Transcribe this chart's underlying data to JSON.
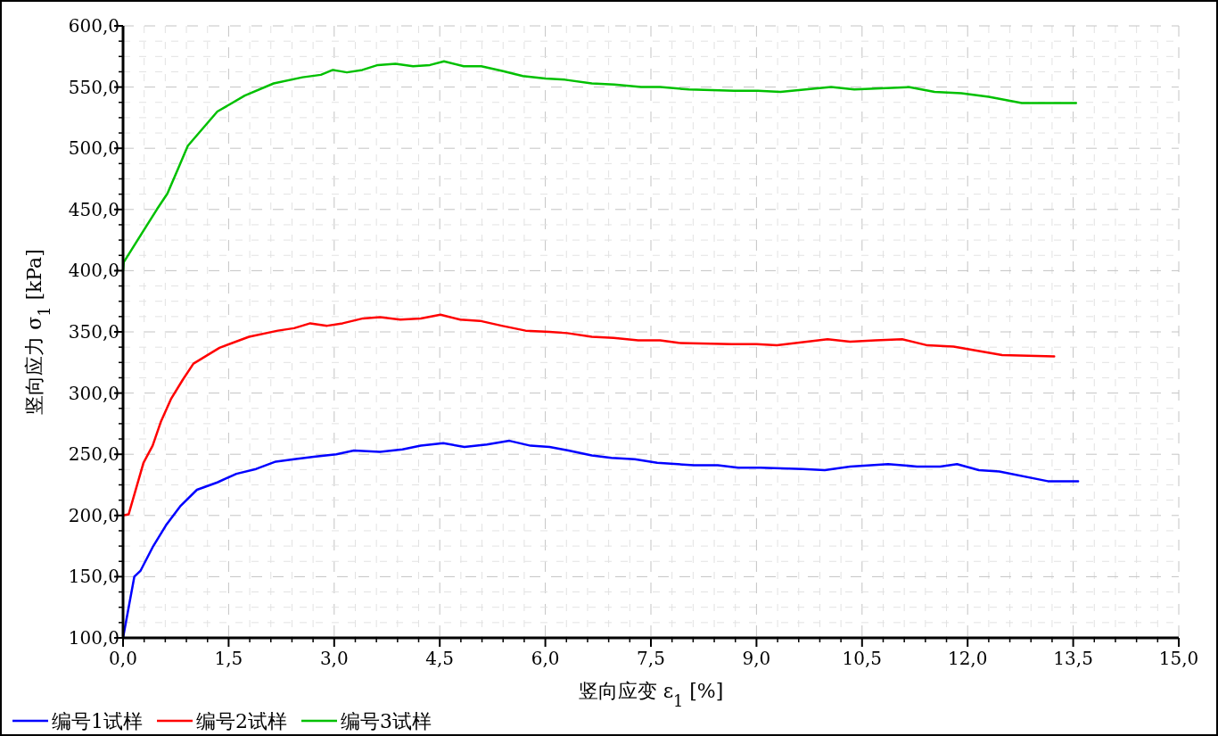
{
  "chart_data": {
    "type": "line",
    "xlabel": "竖向应变  ε$_{1}$ [%]",
    "ylabel": "竖向应力  σ$_{1}$ [kPa]",
    "xlim": [
      0,
      15
    ],
    "ylim": [
      100,
      600
    ],
    "xticks": [
      {
        "value": 0,
        "label": "0,0"
      },
      {
        "value": 1.5,
        "label": "1,5"
      },
      {
        "value": 3,
        "label": "3,0"
      },
      {
        "value": 4.5,
        "label": "4,5"
      },
      {
        "value": 6,
        "label": "6,0"
      },
      {
        "value": 7.5,
        "label": "7,5"
      },
      {
        "value": 9,
        "label": "9,0"
      },
      {
        "value": 10.5,
        "label": "10,5"
      },
      {
        "value": 12,
        "label": "12,0"
      },
      {
        "value": 13.5,
        "label": "13,5"
      },
      {
        "value": 15,
        "label": "15,0"
      }
    ],
    "yticks": [
      {
        "value": 100,
        "label": "100,0"
      },
      {
        "value": 150,
        "label": "150,0"
      },
      {
        "value": 200,
        "label": "200,0"
      },
      {
        "value": 250,
        "label": "250,0"
      },
      {
        "value": 300,
        "label": "300,0"
      },
      {
        "value": 350,
        "label": "350,0"
      },
      {
        "value": 400,
        "label": "400,0"
      },
      {
        "value": 450,
        "label": "450,0"
      },
      {
        "value": 500,
        "label": "500,0"
      },
      {
        "value": 550,
        "label": "550,0"
      },
      {
        "value": 600,
        "label": "600,0"
      }
    ],
    "grid": true,
    "legend": "bottom left",
    "marker": "none",
    "line_style": "solid",
    "series": [
      {
        "name": "编号1试样",
        "color": "#0000ff",
        "x": [
          0,
          0.16,
          0.25,
          0.42,
          0.61,
          0.82,
          1.05,
          1.34,
          1.61,
          1.89,
          2.17,
          2.43,
          2.71,
          3.03,
          3.28,
          3.65,
          3.97,
          4.23,
          4.55,
          4.85,
          5.17,
          5.49,
          5.79,
          6.06,
          6.33,
          6.66,
          6.94,
          7.27,
          7.59,
          8.11,
          8.45,
          8.74,
          9.05,
          9.66,
          9.97,
          10.33,
          10.87,
          11.28,
          11.61,
          11.85,
          12.16,
          12.45,
          13.14,
          13.57
        ],
        "values": [
          100,
          150,
          155,
          174,
          192,
          208,
          221,
          227,
          234,
          238,
          244,
          246,
          248,
          250,
          253,
          252,
          254,
          257,
          259,
          256,
          258,
          261,
          257,
          256,
          253,
          249,
          247,
          246,
          243,
          241,
          241,
          239,
          239,
          238,
          237,
          240,
          242,
          240,
          240,
          242,
          237,
          236,
          228,
          228
        ]
      },
      {
        "name": "编号2试样",
        "color": "#ff0000",
        "x": [
          0,
          0.08,
          0.29,
          0.42,
          0.54,
          0.68,
          0.85,
          1.0,
          1.37,
          1.79,
          2.2,
          2.43,
          2.66,
          2.9,
          3.12,
          3.41,
          3.65,
          3.94,
          4.23,
          4.51,
          4.79,
          5.07,
          5.38,
          5.72,
          6.06,
          6.31,
          6.66,
          6.97,
          7.32,
          7.63,
          7.89,
          8.65,
          9.0,
          9.29,
          10.01,
          10.33,
          10.69,
          11.07,
          11.43,
          11.8,
          12.49,
          13.23
        ],
        "values": [
          200,
          201,
          243,
          257,
          277,
          295,
          311,
          324,
          337,
          346,
          351,
          353,
          357,
          355,
          357,
          361,
          362,
          360,
          361,
          364,
          360,
          359,
          355,
          351,
          350,
          349,
          346,
          345,
          343,
          343,
          341,
          340,
          340,
          339,
          344,
          342,
          343,
          344,
          339,
          338,
          331,
          330
        ]
      },
      {
        "name": "编号3试样",
        "color": "#00c000",
        "x": [
          0,
          0.01,
          0.48,
          0.63,
          0.78,
          0.92,
          1.13,
          1.34,
          1.73,
          2.14,
          2.55,
          2.81,
          2.98,
          3.18,
          3.4,
          3.62,
          3.87,
          4.12,
          4.36,
          4.56,
          4.84,
          5.09,
          5.4,
          5.68,
          6.0,
          6.28,
          6.66,
          6.98,
          7.36,
          7.63,
          8.04,
          8.68,
          9.02,
          9.34,
          10.06,
          10.39,
          11.16,
          11.53,
          11.91,
          12.3,
          12.77,
          13.54
        ],
        "values": [
          400,
          407,
          450,
          463,
          483,
          502,
          516,
          530,
          543,
          553,
          558,
          560,
          564,
          562,
          564,
          568,
          569,
          567,
          568,
          571,
          567,
          567,
          563,
          559,
          557,
          556,
          553,
          552,
          550,
          550,
          548,
          547,
          547,
          546,
          550,
          548,
          550,
          546,
          545,
          542,
          537,
          537
        ]
      }
    ]
  }
}
